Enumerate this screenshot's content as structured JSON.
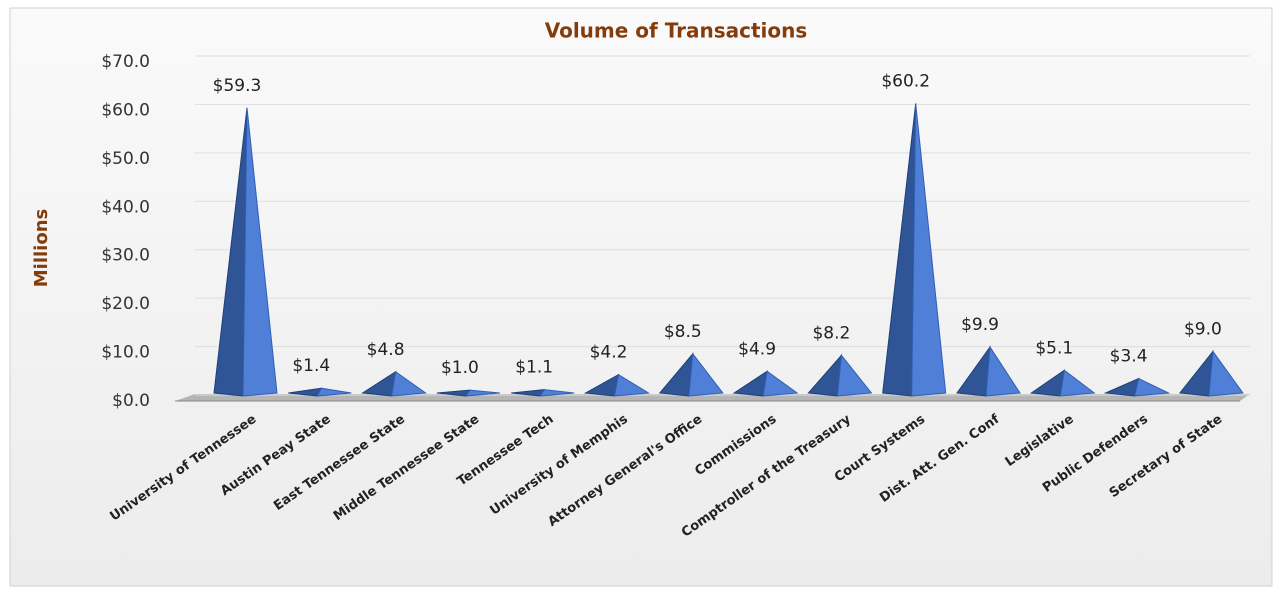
{
  "chart_data": {
    "type": "bar",
    "title": "Volume of Transactions",
    "y_label": "Millions",
    "categories": [
      "University of Tennessee",
      "Austin Peay State",
      "East Tennessee State",
      "Middle Tennessee State",
      "Tennessee Tech",
      "University of Memphis",
      "Attorney General's Office",
      "Commissions",
      "Comptroller of the Treasury",
      "Court Systems",
      "Dist. Att. Gen. Conf",
      "Legislative",
      "Public Defenders",
      "Secretary of State"
    ],
    "values": [
      59.3,
      1.4,
      4.8,
      1.0,
      1.1,
      4.2,
      8.5,
      4.9,
      8.2,
      60.2,
      9.9,
      5.1,
      3.4,
      9.0
    ],
    "value_labels": [
      "$59.3",
      "$1.4",
      "$4.8",
      "$1.0",
      "$1.1",
      "$4.2",
      "$8.5",
      "$4.9",
      "$8.2",
      "$60.2",
      "$9.9",
      "$5.1",
      "$3.4",
      "$9.0"
    ],
    "color": "#4f7fd6",
    "ylim": [
      0,
      70
    ],
    "yticks": [
      {
        "value": 0,
        "label": "$0.0"
      },
      {
        "value": 10,
        "label": "$10.0"
      },
      {
        "value": 20,
        "label": "$20.0"
      },
      {
        "value": 30,
        "label": "$30.0"
      },
      {
        "value": 40,
        "label": "$40.0"
      },
      {
        "value": 50,
        "label": "$50.0"
      },
      {
        "value": 60,
        "label": "$60.0"
      },
      {
        "value": 70,
        "label": "$70.0"
      }
    ],
    "grid": true
  }
}
